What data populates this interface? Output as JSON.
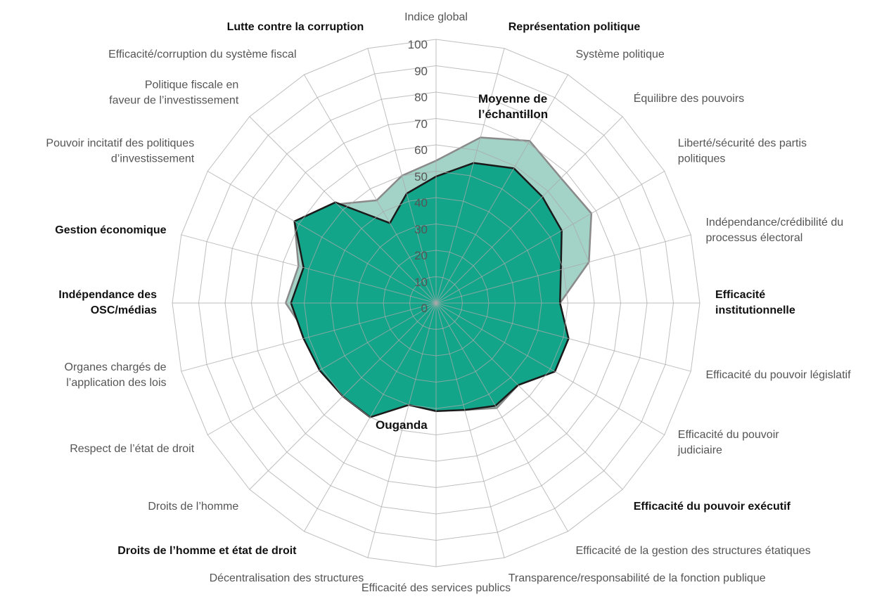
{
  "chart_data": {
    "type": "radar",
    "categories": [
      "Indice global",
      "Représentation politique",
      "Système politique",
      "Équilibre des pouvoirs",
      "Liberté/sécurité des partis\npolitiques",
      "Indépendance/crédibilité du\nprocessus électoral",
      "Efficacité\ninstitutionnelle",
      "Efficacité du pouvoir législatif",
      "Efficacité du pouvoir\njudiciaire",
      "Efficacité du pouvoir exécutif",
      "Efficacité de la gestion des structures étatiques",
      "Transparence/responsabilité  de la fonction publique",
      "Efficacité des services publics",
      "Décentralisation des structures",
      "Droits de l’homme et état de droit",
      "Droits de l’homme",
      "Respect de l’état de droit",
      "Organes chargés de\nl’application des lois",
      "Indépendance des\nOSC/médias",
      "Gestion économique",
      "Pouvoir incitatif des politiques\nd’investissement",
      "Politique fiscale en\nfaveur de l’investissement",
      "Efficacité/corruption du système fiscal",
      "Lutte contre la corruption"
    ],
    "series": [
      {
        "name": "Moyenne de\nl’échantillon",
        "color": "#a3d2c6",
        "stroke": "#8a8a8a",
        "values": [
          54,
          65,
          71,
          67,
          68,
          60,
          47,
          52,
          52,
          44,
          46,
          42,
          40,
          40,
          49,
          49,
          50,
          50,
          57,
          54,
          62,
          53,
          45,
          50
        ]
      },
      {
        "name": "Ouganda",
        "color": "#13a58a",
        "stroke": "#1a1a1a",
        "values": [
          48,
          55,
          59,
          57,
          55,
          49,
          47,
          52,
          52,
          44,
          45,
          42,
          41,
          40,
          50,
          50,
          51,
          52,
          55,
          52,
          62,
          54,
          35,
          43
        ]
      }
    ],
    "rlim": [
      0,
      100
    ],
    "rticks": [
      0,
      10,
      20,
      30,
      40,
      50,
      60,
      70,
      80,
      90,
      100
    ],
    "grid": true
  }
}
